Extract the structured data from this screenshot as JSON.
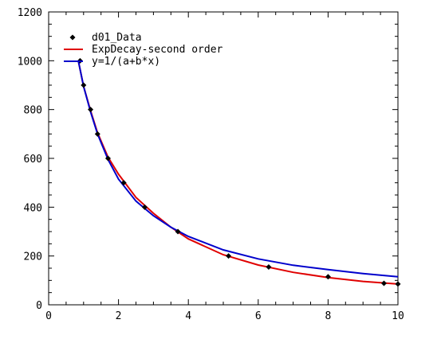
{
  "chart_data": {
    "type": "scatter",
    "xlim": [
      0,
      10
    ],
    "ylim": [
      0,
      1200
    ],
    "xticks": [
      "0",
      "2",
      "4",
      "6",
      "8",
      "10"
    ],
    "yticks": [
      "0",
      "200",
      "400",
      "600",
      "800",
      "1000",
      "1200"
    ],
    "legend_position": "top-left",
    "grid": false,
    "series": [
      {
        "name": "d01_Data",
        "kind": "points",
        "color": "#000000",
        "marker": "diamond",
        "x": [
          0.9,
          1.0,
          1.2,
          1.4,
          1.7,
          2.15,
          2.75,
          3.7,
          5.15,
          6.3,
          8.0,
          9.6,
          10.0
        ],
        "y": [
          1000,
          900,
          800,
          700,
          600,
          500,
          400,
          300,
          200,
          155,
          115,
          88,
          85
        ]
      },
      {
        "name": "ExpDecay-second order",
        "kind": "line",
        "color": "#e00000",
        "x": [
          0.85,
          1.0,
          1.2,
          1.4,
          1.7,
          2.0,
          2.5,
          3.0,
          3.5,
          4.0,
          5.0,
          6.0,
          7.0,
          8.0,
          9.0,
          10.0
        ],
        "y": [
          1000,
          895,
          795,
          705,
          605,
          535,
          440,
          375,
          318,
          270,
          205,
          163,
          133,
          112,
          96,
          85
        ]
      },
      {
        "name": "y=1/(a+b*x)",
        "kind": "line",
        "color": "#0000cc",
        "x": [
          0.85,
          1.0,
          1.2,
          1.4,
          1.7,
          2.0,
          2.5,
          3.0,
          3.5,
          4.0,
          5.0,
          6.0,
          7.0,
          8.0,
          9.0,
          10.0
        ],
        "y": [
          1000,
          895,
          790,
          700,
          595,
          515,
          425,
          365,
          318,
          280,
          225,
          188,
          162,
          144,
          128,
          115
        ]
      }
    ]
  }
}
